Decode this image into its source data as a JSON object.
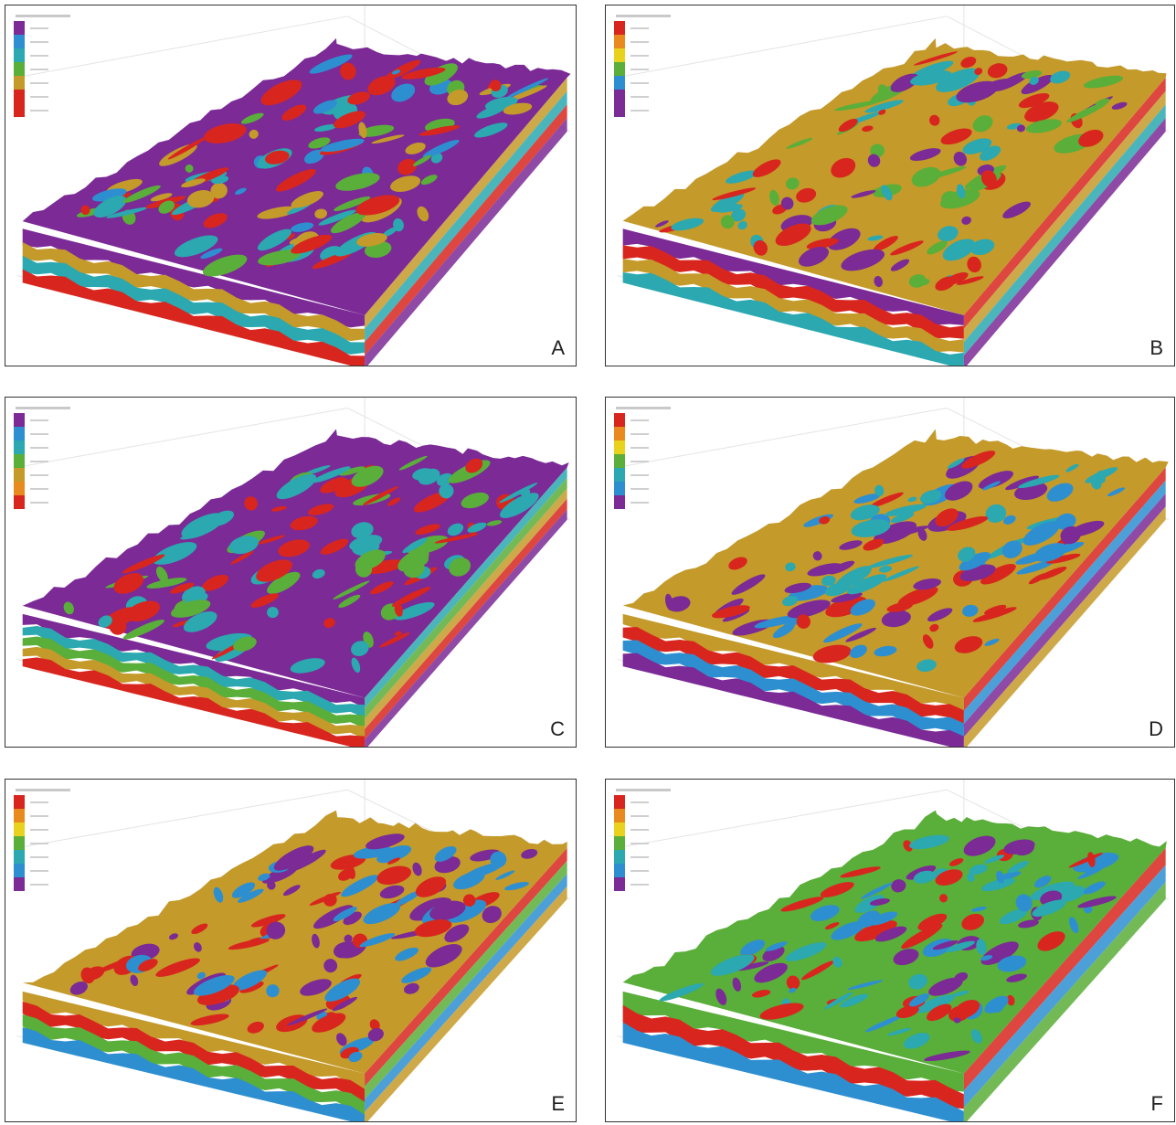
{
  "colors": {
    "purple": "#7b2a96",
    "blue": "#2e8fd0",
    "green": "#5aae3a",
    "gold": "#c49a2a",
    "red": "#d8261f",
    "teal": "#2ba8b0",
    "orange": "#e88a1e",
    "yellow": "#e8d21e",
    "frame": "#333333"
  },
  "panels": [
    {
      "letter": "A",
      "legend": [
        "purple",
        "blue",
        "teal",
        "green",
        "gold",
        "red",
        "red"
      ],
      "top": "purple",
      "spots": [
        "red",
        "teal",
        "green",
        "blue",
        "gold"
      ],
      "side": [
        "purple",
        "gold",
        "teal",
        "red"
      ]
    },
    {
      "letter": "B",
      "legend": [
        "red",
        "orange",
        "yellow",
        "green",
        "blue",
        "purple",
        "purple"
      ],
      "top": "gold",
      "spots": [
        "purple",
        "red",
        "teal",
        "green"
      ],
      "side": [
        "purple",
        "red",
        "gold",
        "teal"
      ]
    },
    {
      "letter": "C",
      "legend": [
        "purple",
        "blue",
        "teal",
        "green",
        "gold",
        "orange",
        "red"
      ],
      "top": "purple",
      "spots": [
        "green",
        "red",
        "teal"
      ],
      "side": [
        "purple",
        "teal",
        "green",
        "gold",
        "red"
      ]
    },
    {
      "letter": "D",
      "legend": [
        "red",
        "orange",
        "yellow",
        "green",
        "teal",
        "blue",
        "purple"
      ],
      "top": "gold",
      "spots": [
        "purple",
        "blue",
        "red",
        "teal"
      ],
      "side": [
        "gold",
        "red",
        "blue",
        "purple"
      ]
    },
    {
      "letter": "E",
      "legend": [
        "red",
        "orange",
        "yellow",
        "green",
        "teal",
        "blue",
        "purple"
      ],
      "top": "gold",
      "spots": [
        "purple",
        "blue",
        "red"
      ],
      "side": [
        "gold",
        "red",
        "green",
        "blue"
      ]
    },
    {
      "letter": "F",
      "legend": [
        "red",
        "orange",
        "yellow",
        "green",
        "teal",
        "blue",
        "purple"
      ],
      "top": "green",
      "spots": [
        "red",
        "blue",
        "purple",
        "teal"
      ],
      "side": [
        "green",
        "red",
        "blue"
      ]
    }
  ]
}
